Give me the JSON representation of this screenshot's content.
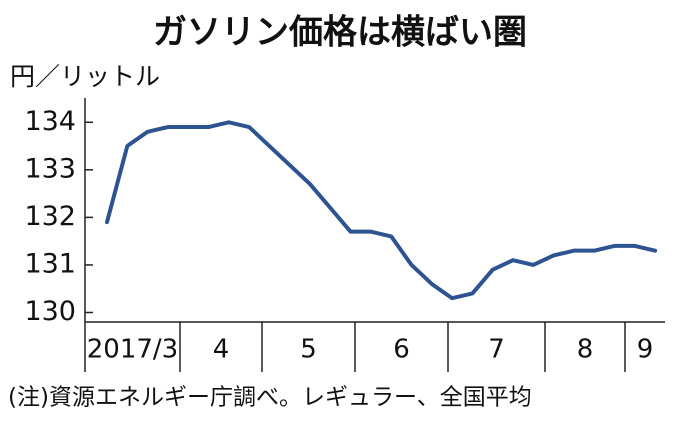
{
  "chart_data": {
    "type": "line",
    "title": "ガソリン価格は横ばい圏",
    "y_label": "円／リットル",
    "note": "(注)資源エネルギー庁調べ。レギュラー、全国平均",
    "month_labels": [
      "2017/3",
      "4",
      "5",
      "6",
      "7",
      "8",
      "9"
    ],
    "categories": [
      null,
      null,
      null,
      null,
      null,
      null,
      null,
      null,
      null,
      null,
      null,
      null,
      null,
      null,
      null,
      null,
      null,
      null,
      null,
      null,
      null,
      null,
      null,
      null,
      null,
      null,
      null,
      null
    ],
    "series": [
      {
        "color": "#2d5490",
        "values": [
          131.9,
          133.5,
          133.8,
          133.9,
          133.9,
          133.9,
          134.0,
          133.9,
          133.5,
          133.1,
          132.7,
          132.2,
          131.7,
          131.7,
          131.6,
          131.0,
          130.6,
          130.3,
          130.4,
          130.9,
          131.1,
          131.0,
          131.2,
          131.3,
          131.3,
          131.4,
          131.4,
          131.3
        ]
      }
    ],
    "ylim": [
      129.8,
      134.3
    ],
    "yticks": [
      130,
      131,
      132,
      133,
      134
    ]
  }
}
